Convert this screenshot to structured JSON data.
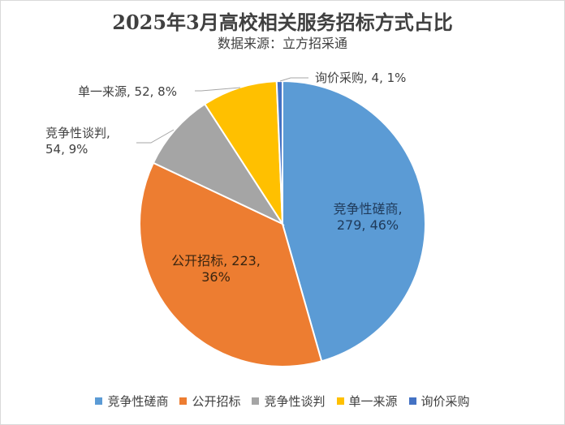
{
  "chart_data": {
    "type": "pie",
    "title": "2025年3月高校相关服务招标方式占比",
    "subtitle": "数据来源：立方招采通",
    "slices": [
      {
        "name": "竞争性磋商",
        "value": 279,
        "percent": "46%",
        "color": "#5b9bd5",
        "label": "竞争性磋商,\n279, 46%"
      },
      {
        "name": "公开招标",
        "value": 223,
        "percent": "36%",
        "color": "#ed7d31",
        "label": "公开招标, 223,\n36%"
      },
      {
        "name": "竞争性谈判",
        "value": 54,
        "percent": "9%",
        "color": "#a5a5a5",
        "label": "竞争性谈判,\n54, 9%"
      },
      {
        "name": "单一来源",
        "value": 52,
        "percent": "8%",
        "color": "#ffc000",
        "label": "单一来源, 52, 8%"
      },
      {
        "name": "询价采购",
        "value": 4,
        "percent": "1%",
        "color": "#4472c4",
        "label": "询价采购, 4, 1%"
      }
    ],
    "legend_position": "bottom"
  }
}
